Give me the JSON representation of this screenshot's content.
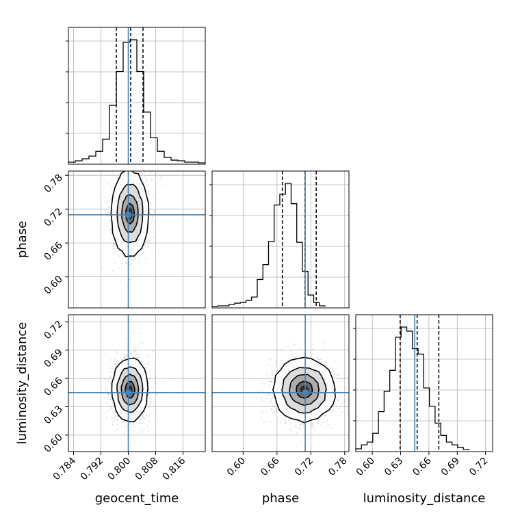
{
  "chart_data": {
    "type": "corner",
    "parameters": [
      "geocent_time",
      "phase",
      "luminosity_distance"
    ],
    "axis_labels": [
      "geocent_time",
      "phase",
      "luminosity_distance"
    ],
    "ranges": [
      [
        0.7825,
        0.8225
      ],
      [
        0.545,
        0.7875
      ],
      [
        0.5825,
        0.7275
      ]
    ],
    "ticks": [
      [
        "0.784",
        "0.792",
        "0.800",
        "0.808",
        "0.816"
      ],
      [
        "0.60",
        "0.66",
        "0.72",
        "0.78"
      ],
      [
        "0.60",
        "0.63",
        "0.66",
        "0.69",
        "0.72"
      ]
    ],
    "truths": [
      0.8,
      0.71,
      0.645
    ],
    "grid": true,
    "colors": {
      "histogram": "#000000",
      "truth": "#4682b4",
      "quantile": "#000000",
      "density": "#333333"
    },
    "marginals": [
      {
        "parameter": "geocent_time",
        "bin_start": 0.7825,
        "bin_width": 0.002,
        "max_density": 182,
        "density": [
          1,
          3,
          6,
          10,
          17,
          35,
          85,
          135,
          178,
          182,
          135,
          75,
          37,
          17,
          8,
          4,
          3,
          1,
          1,
          0
        ],
        "quantiles": [
          0.7965,
          0.8007,
          0.8043
        ]
      },
      {
        "parameter": "phase",
        "bin_start": 0.545,
        "bin_width": 0.01,
        "max_density": 182,
        "density": [
          0,
          1,
          1,
          3,
          5,
          6,
          9,
          14,
          40,
          62,
          96,
          150,
          166,
          182,
          152,
          95,
          52,
          17,
          6,
          1
        ],
        "quantiles": [
          0.6695,
          0.7095,
          0.7295
        ]
      },
      {
        "parameter": "luminosity_distance",
        "bin_start": 0.5825,
        "bin_width": 0.006,
        "max_density": 182,
        "density": [
          2,
          8,
          12,
          25,
          57,
          87,
          118,
          167,
          182,
          176,
          150,
          142,
          92,
          65,
          40,
          22,
          12,
          8,
          4,
          1
        ],
        "quantiles": [
          0.6295,
          0.6475,
          0.6705
        ]
      }
    ],
    "joint": [
      {
        "x": "geocent_time",
        "y": "phase",
        "mean": [
          0.8005,
          0.712
        ],
        "sigma": [
          0.0025,
          0.035
        ],
        "level_scales": [
          2.2,
          1.5,
          0.95,
          0.5
        ]
      },
      {
        "x": "geocent_time",
        "y": "luminosity_distance",
        "mean": [
          0.8005,
          0.648
        ],
        "sigma": [
          0.0025,
          0.016
        ],
        "level_scales": [
          2.1,
          1.5,
          1.0,
          0.55
        ]
      },
      {
        "x": "phase",
        "y": "luminosity_distance",
        "mean": [
          0.7085,
          0.648
        ],
        "sigma": [
          0.026,
          0.016
        ],
        "level_scales": [
          2.1,
          1.5,
          1.0,
          0.55
        ]
      }
    ]
  }
}
